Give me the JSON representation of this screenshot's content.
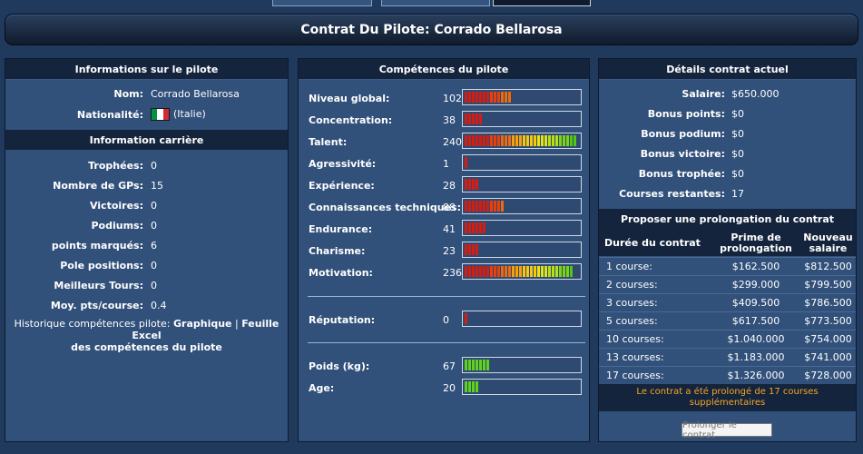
{
  "title": "Contrat Du Pilote: Corrado Bellarosa",
  "left": {
    "header": "Informations sur le pilote",
    "name_label": "Nom:",
    "name_value": "Corrado Bellarosa",
    "nationality_label": "Nationalité:",
    "nationality_value": "(Italie)",
    "flag_colors": [
      "#009246",
      "#ffffff",
      "#ce2b37"
    ],
    "career_header": "Information carrière",
    "stats": [
      {
        "label": "Trophées:",
        "value": "0"
      },
      {
        "label": "Nombre de GPs:",
        "value": "15"
      },
      {
        "label": "Victoires:",
        "value": "0"
      },
      {
        "label": "Podiums:",
        "value": "0"
      },
      {
        "label": "points marqués:",
        "value": "6"
      },
      {
        "label": "Pole positions:",
        "value": "0"
      },
      {
        "label": "Meilleurs Tours:",
        "value": "0"
      },
      {
        "label": "Moy. pts/course:",
        "value": "0.4"
      }
    ],
    "history_text": "Historique compétences pilote:",
    "history_link1": "Graphique",
    "history_sep": "|",
    "history_link2a": "Feuille Excel",
    "history_link2b": "des compétences du pilote"
  },
  "middle": {
    "header": "Compétences du pilote",
    "skills": [
      {
        "label": "Niveau global:",
        "value": "102",
        "segments": 13
      },
      {
        "label": "Concentration:",
        "value": "38",
        "segments": 5
      },
      {
        "label": "Talent:",
        "value": "240",
        "segments": 31
      },
      {
        "label": "Agressivité:",
        "value": "1",
        "segments": 1
      },
      {
        "label": "Expérience:",
        "value": "28",
        "segments": 4
      },
      {
        "label": "Connaissances techniques:",
        "value": "88",
        "segments": 11
      },
      {
        "label": "Endurance:",
        "value": "41",
        "segments": 6
      },
      {
        "label": "Charisme:",
        "value": "23",
        "segments": 4
      },
      {
        "label": "Motivation:",
        "value": "236",
        "segments": 30
      }
    ],
    "reputation": {
      "label": "Réputation:",
      "value": "0",
      "segments": 1
    },
    "physical": [
      {
        "label": "Poids (kg):",
        "value": "67",
        "segments": 7
      },
      {
        "label": "Age:",
        "value": "20",
        "segments": 4
      }
    ]
  },
  "right": {
    "header": "Détails contrat actuel",
    "details": [
      {
        "label": "Salaire:",
        "value": "$650.000"
      },
      {
        "label": "Bonus points:",
        "value": "$0"
      },
      {
        "label": "Bonus podium:",
        "value": "$0"
      },
      {
        "label": "Bonus victoire:",
        "value": "$0"
      },
      {
        "label": "Bonus trophée:",
        "value": "$0"
      },
      {
        "label": "Courses restantes:",
        "value": "17"
      }
    ],
    "proposal_header": "Proposer une prolongation du contrat",
    "columns": [
      "Durée du contrat",
      "Prime de prolongation",
      "Nouveau salaire"
    ],
    "rows": [
      {
        "duration": "1 course:",
        "bonus": "$162.500",
        "salary": "$812.500"
      },
      {
        "duration": "2 courses:",
        "bonus": "$299.000",
        "salary": "$799.500"
      },
      {
        "duration": "3 courses:",
        "bonus": "$409.500",
        "salary": "$786.500"
      },
      {
        "duration": "5 courses:",
        "bonus": "$617.500",
        "salary": "$773.500"
      },
      {
        "duration": "10 courses:",
        "bonus": "$1.040.000",
        "salary": "$754.000"
      },
      {
        "duration": "13 courses:",
        "bonus": "$1.183.000",
        "salary": "$741.000"
      },
      {
        "duration": "17 courses:",
        "bonus": "$1.326.000",
        "salary": "$728.000"
      }
    ],
    "notice": "Le contrat a été prolongé de 17 courses supplémentaires",
    "notice_color": "#f5a623",
    "button_label": "Prolonger le contrat"
  }
}
